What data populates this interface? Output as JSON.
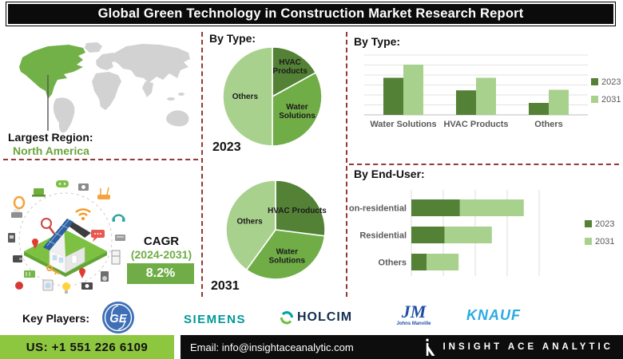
{
  "title": "Global Green Technology in Construction Market Research Report",
  "colors": {
    "dark_green": "#538135",
    "mid_green": "#70AD47",
    "light_green": "#A9D18E",
    "map_green": "#72B048",
    "map_gray": "#D2D2D2",
    "dash_maroon": "#953735",
    "bright_green": "#8DC63F",
    "cagr_green": "#70AD47"
  },
  "map_section": {
    "heading": "Largest Region:",
    "region": "North America"
  },
  "type_pie_section": {
    "heading": "By Type:"
  },
  "type_bar_section": {
    "heading": "By  Type:"
  },
  "enduser_section": {
    "heading": "By End-User:"
  },
  "cagr": {
    "label": "CAGR",
    "period": "(2024-2031)",
    "value": "8.2%"
  },
  "key_players": {
    "label": "Key Players:",
    "ge": "GE",
    "siemens": "SIEMENS",
    "holcim": "HOLCIM",
    "jm": "JM",
    "jm_caption": "Johns Manville",
    "knauf": "KNAUF"
  },
  "footer": {
    "phone": "US: +1 551 226 6109",
    "email": "Email: info@insightaceanalytic.com",
    "brand": "INSIGHT ACE ANALYTIC"
  },
  "chart_data": [
    {
      "id": "pie-2023",
      "type": "pie",
      "title": "2023",
      "slices": [
        {
          "label": "HVAC Products",
          "lines": [
            "HVAC",
            "Products"
          ],
          "value": 17
        },
        {
          "label": "Water Solutions",
          "lines": [
            "Water",
            "Solutions"
          ],
          "value": 33
        },
        {
          "label": "Others",
          "lines": [
            "Others"
          ],
          "value": 50
        }
      ],
      "palette": [
        "dark_green",
        "mid_green",
        "light_green"
      ]
    },
    {
      "id": "pie-2031",
      "type": "pie",
      "title": "2031",
      "slices": [
        {
          "label": "HVAC Products",
          "lines": [
            "HVAC Products"
          ],
          "value": 27
        },
        {
          "label": "Water Solutions",
          "lines": [
            "Water",
            "Solutions"
          ],
          "value": 33
        },
        {
          "label": "Others",
          "lines": [
            "Others"
          ],
          "value": 40
        }
      ],
      "palette": [
        "dark_green",
        "mid_green",
        "light_green"
      ]
    },
    {
      "id": "type-bars",
      "type": "bar",
      "title": "By Type",
      "categories": [
        "Water Solutions",
        "HVAC Products",
        "Others"
      ],
      "series": [
        {
          "name": "2023",
          "color": "dark_green",
          "values": [
            62,
            41,
            20
          ]
        },
        {
          "name": "2031",
          "color": "light_green",
          "values": [
            84,
            62,
            42
          ]
        }
      ],
      "ylim": [
        0,
        100
      ],
      "grid": true,
      "legend_position": "right"
    },
    {
      "id": "enduser-bars",
      "type": "stacked-bar-horizontal",
      "title": "By End-User",
      "categories": [
        "Non-residential",
        "Residential",
        "Others"
      ],
      "series": [
        {
          "name": "2023",
          "color": "dark_green",
          "values": [
            38,
            26,
            12
          ]
        },
        {
          "name": "2031",
          "color": "light_green",
          "values": [
            50,
            37,
            25
          ]
        }
      ],
      "xlim": [
        0,
        100
      ],
      "grid": true,
      "legend_position": "right"
    }
  ]
}
